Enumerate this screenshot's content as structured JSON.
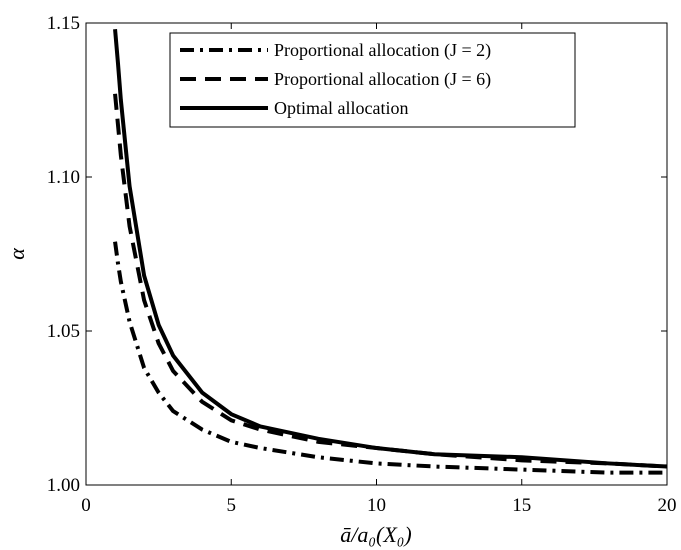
{
  "chart_data": {
    "type": "line",
    "xlabel": "ā/a₀(X₀)",
    "ylabel": "α",
    "xlim": [
      0,
      20
    ],
    "ylim": [
      1.0,
      1.15
    ],
    "xticks": [
      "0",
      "5",
      "10",
      "15",
      "20"
    ],
    "yticks": [
      "1.00",
      "1.05",
      "1.10",
      "1.15"
    ],
    "grid": false,
    "legend_position": "top-center",
    "x": [
      1.0,
      1.1,
      1.2,
      1.5,
      2,
      2.5,
      3,
      4,
      5,
      6,
      8,
      10,
      12,
      15,
      18,
      20
    ],
    "series": [
      {
        "name": "Proportional allocation (J = 2)",
        "style": "dashdot",
        "values": [
          1.079,
          1.072,
          1.066,
          1.053,
          1.038,
          1.03,
          1.024,
          1.018,
          1.014,
          1.012,
          1.009,
          1.007,
          1.006,
          1.005,
          1.004,
          1.004
        ]
      },
      {
        "name": "Proportional allocation (J = 6)",
        "style": "dashed",
        "values": [
          1.127,
          1.117,
          1.107,
          1.084,
          1.06,
          1.046,
          1.037,
          1.027,
          1.021,
          1.018,
          1.014,
          1.012,
          1.01,
          1.008,
          1.007,
          1.006
        ]
      },
      {
        "name": "Optimal allocation",
        "style": "solid",
        "values": [
          1.148,
          1.137,
          1.125,
          1.097,
          1.068,
          1.052,
          1.042,
          1.03,
          1.023,
          1.019,
          1.015,
          1.012,
          1.01,
          1.009,
          1.007,
          1.006
        ]
      }
    ]
  }
}
